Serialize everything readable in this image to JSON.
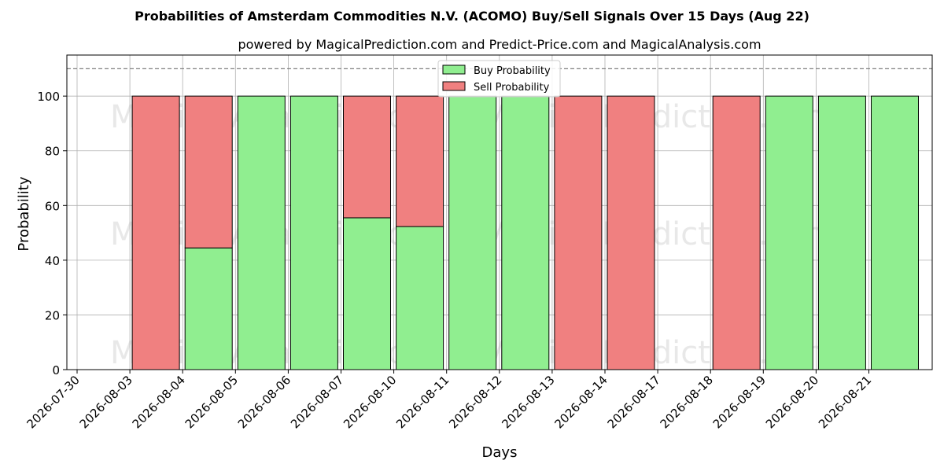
{
  "chart_data": {
    "type": "bar",
    "stacked": true,
    "title": "Probabilities of Amsterdam Commodities N.V. (ACOMO) Buy/Sell Signals Over 15 Days (Aug 22)",
    "subtitle": "powered by MagicalPrediction.com and Predict-Price.com and MagicalAnalysis.com",
    "xlabel": "Days",
    "ylabel": "Probability",
    "ylim": [
      0,
      115
    ],
    "yticks": [
      0,
      20,
      40,
      60,
      80,
      100
    ],
    "reference_line": 110,
    "grid": true,
    "legend_position": "upper center",
    "categories": [
      "2026-07-30",
      "2026-08-03",
      "2026-08-04",
      "2026-08-05",
      "2026-08-06",
      "2026-08-07",
      "2026-08-10",
      "2026-08-11",
      "2026-08-12",
      "2026-08-13",
      "2026-08-14",
      "2026-08-17",
      "2026-08-18",
      "2026-08-19",
      "2026-08-20",
      "2026-08-21"
    ],
    "series": [
      {
        "name": "Buy Probability",
        "color": "#90ee90",
        "values": [
          null,
          0,
          44.5,
          100,
          100,
          55.5,
          52.3,
          100,
          100,
          0,
          0,
          null,
          0,
          100,
          100,
          100
        ]
      },
      {
        "name": "Sell Probability",
        "color": "#f08080",
        "values": [
          null,
          100,
          55.5,
          0,
          0,
          44.5,
          47.7,
          0,
          0,
          100,
          100,
          null,
          100,
          0,
          0,
          0
        ]
      }
    ],
    "watermarks": [
      "MagicalAnalysis.com",
      "MagicalPrediction.com"
    ]
  }
}
